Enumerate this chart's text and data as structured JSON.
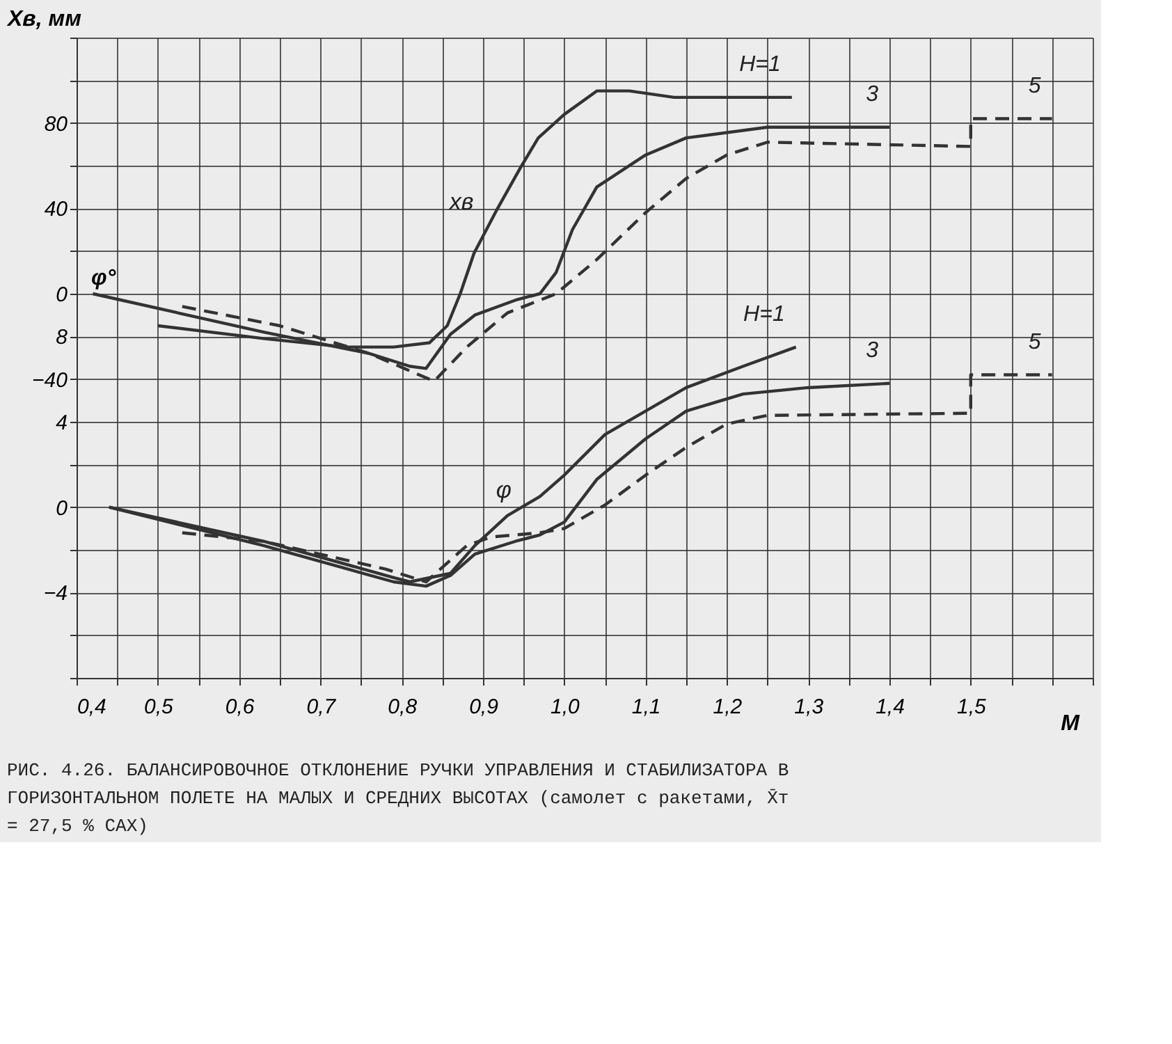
{
  "chart_data": {
    "type": "line",
    "xlabel": "M",
    "ylabel": "Xв, мм",
    "y2label": "φ°",
    "xlim": [
      0.4,
      1.65
    ],
    "ylim": [
      -180,
      120
    ],
    "y2lim": [
      -8,
      22
    ],
    "xticks": [
      {
        "value": 0.4,
        "label": "0,4"
      },
      {
        "value": 0.45,
        "label": null
      },
      {
        "value": 0.5,
        "label": "0,5"
      },
      {
        "value": 0.55,
        "label": null
      },
      {
        "value": 0.6,
        "label": "0,6"
      },
      {
        "value": 0.65,
        "label": null
      },
      {
        "value": 0.7,
        "label": "0,7"
      },
      {
        "value": 0.75,
        "label": null
      },
      {
        "value": 0.8,
        "label": "0,8"
      },
      {
        "value": 0.85,
        "label": null
      },
      {
        "value": 0.9,
        "label": "0,9"
      },
      {
        "value": 0.95,
        "label": null
      },
      {
        "value": 1.0,
        "label": "1,0"
      },
      {
        "value": 1.05,
        "label": null
      },
      {
        "value": 1.1,
        "label": "1,1"
      },
      {
        "value": 1.15,
        "label": null
      },
      {
        "value": 1.2,
        "label": "1,2"
      },
      {
        "value": 1.25,
        "label": null
      },
      {
        "value": 1.3,
        "label": "1,3"
      },
      {
        "value": 1.35,
        "label": null
      },
      {
        "value": 1.4,
        "label": "1,4"
      },
      {
        "value": 1.45,
        "label": null
      },
      {
        "value": 1.5,
        "label": "1,5"
      },
      {
        "value": 1.55,
        "label": null
      },
      {
        "value": 1.6,
        "label": null
      },
      {
        "value": 1.65,
        "label": null
      }
    ],
    "yticks": [
      {
        "value": -180,
        "label": null
      },
      {
        "value": -160,
        "label": null
      },
      {
        "value": -140,
        "label": null
      },
      {
        "value": -120,
        "label": null
      },
      {
        "value": -100,
        "label": null
      },
      {
        "value": -80,
        "label": null
      },
      {
        "value": -60,
        "label": null
      },
      -40,
      {
        "value": -20,
        "label": null
      },
      0,
      {
        "value": 20,
        "label": null
      },
      40,
      {
        "value": 60,
        "label": null
      },
      80,
      {
        "value": 100,
        "label": null
      },
      {
        "value": 120,
        "label": null
      }
    ],
    "y2ticks": [
      8,
      4,
      0,
      -4
    ],
    "grid": true,
    "marker": "none",
    "series": [
      {
        "name": "H=1",
        "color": "#333333",
        "line_style": "solid",
        "x": [
          0.5,
          0.63,
          0.73,
          0.79,
          0.834,
          0.856,
          0.872,
          0.889,
          0.918,
          0.946,
          0.968,
          1.0,
          1.04,
          1.08,
          1.135,
          1.28
        ],
        "values": [
          -15,
          -21,
          -25,
          -25,
          -23,
          -15,
          0,
          19,
          40,
          59,
          73,
          84,
          95,
          95,
          92,
          92
        ]
      },
      {
        "name": "3",
        "color": "#333333",
        "line_style": "solid",
        "x": [
          0.42,
          0.63,
          0.76,
          0.81,
          0.83,
          0.86,
          0.89,
          0.94,
          0.97,
          0.99,
          1.01,
          1.04,
          1.1,
          1.15,
          1.25,
          1.4
        ],
        "values": [
          0,
          -18,
          -28,
          -34,
          -35,
          -19,
          -10,
          -3,
          0,
          10,
          30,
          50,
          65,
          73,
          78,
          78
        ]
      },
      {
        "name": "5",
        "color": "#333333",
        "line_style": "dashed",
        "x": [
          0.53,
          0.65,
          0.76,
          0.84,
          0.88,
          0.93,
          0.99,
          1.04,
          1.1,
          1.15,
          1.2,
          1.25,
          1.5,
          1.5,
          1.6
        ],
        "values": [
          -6,
          -15,
          -28,
          -41,
          -25,
          -9,
          0,
          16,
          38,
          54,
          65,
          71,
          69,
          82,
          82
        ]
      },
      {
        "name": "H=1",
        "color": "#333333",
        "line_style": "solid",
        "axis": "y2",
        "x": [
          0.44,
          0.63,
          0.79,
          0.81,
          0.86,
          0.89,
          0.93,
          0.97,
          1.0,
          1.05,
          1.1,
          1.15,
          1.22,
          1.285
        ],
        "values": [
          0,
          -1.6,
          -3.3,
          -3.5,
          -3.1,
          -1.8,
          -0.4,
          0.5,
          1.5,
          3.4,
          4.5,
          5.6,
          6.6,
          7.5
        ]
      },
      {
        "name": "3",
        "color": "#333333",
        "line_style": "solid",
        "axis": "y2",
        "x": [
          0.44,
          0.63,
          0.79,
          0.83,
          0.86,
          0.89,
          0.94,
          0.97,
          1.0,
          1.04,
          1.1,
          1.15,
          1.22,
          1.3,
          1.4
        ],
        "values": [
          0,
          -1.8,
          -3.5,
          -3.7,
          -3.2,
          -2.2,
          -1.6,
          -1.3,
          -0.7,
          1.3,
          3.2,
          4.5,
          5.3,
          5.6,
          5.8
        ]
      },
      {
        "name": "5",
        "color": "#333333",
        "line_style": "dashed",
        "axis": "y2",
        "x": [
          0.53,
          0.63,
          0.78,
          0.83,
          0.88,
          0.91,
          0.97,
          1.0,
          1.05,
          1.1,
          1.15,
          1.2,
          1.25,
          1.5,
          1.5,
          1.6
        ],
        "values": [
          -1.2,
          -1.6,
          -2.9,
          -3.5,
          -1.8,
          -1.4,
          -1.2,
          -1.0,
          0.1,
          1.5,
          2.8,
          3.9,
          4.3,
          4.4,
          6.2,
          6.2
        ]
      }
    ],
    "annotations": [
      "xв",
      "φ",
      "РИС. 4.26. БАЛАНСИРОВОЧНОЕ ОТКЛОНЕНИЕ РУЧКИ УПРАВЛЕНИЯ И СТАБИЛИЗАТОРА В ГОРИЗОНТАЛЬНОМ ПОЛЕТЕ НА МАЛЫХ И СРЕДНИХ ВЫСОТАХ (самолет с ракетами, X̄т = 27,5 % САХ)"
    ]
  }
}
